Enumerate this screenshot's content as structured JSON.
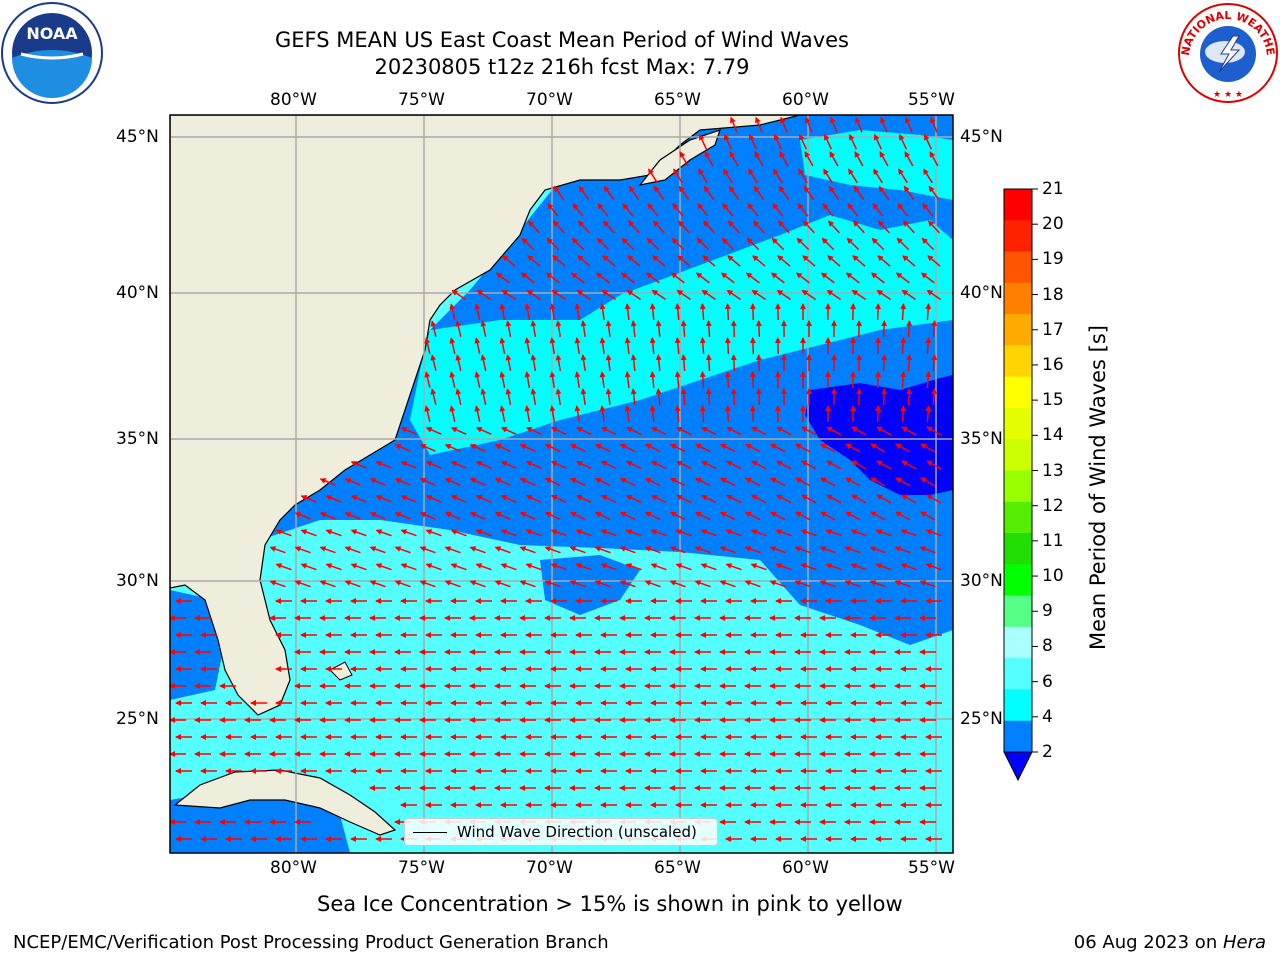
{
  "title": {
    "line1": "GEFS MEAN US East Coast Mean Period of Wind Waves",
    "line2": "20230805 t12z 216h fcst   Max: 7.79"
  },
  "logos": {
    "left": {
      "text": "NOAA",
      "icon": "noaa-logo-icon"
    },
    "right": {
      "text": "NATIONAL WEATHER SERVICE",
      "icon": "nws-logo-icon"
    }
  },
  "axes": {
    "lon_ticks": [
      "80°W",
      "75°W",
      "70°W",
      "65°W",
      "60°W",
      "55°W"
    ],
    "lat_ticks": [
      "45°N",
      "40°N",
      "35°N",
      "30°N",
      "25°N"
    ]
  },
  "colorbar": {
    "label": "Mean Period of Wind Waves [s]",
    "ticks": [
      "21",
      "20",
      "19",
      "18",
      "17",
      "16",
      "15",
      "14",
      "13",
      "12",
      "11",
      "10",
      "9",
      "8",
      "6",
      "4",
      "2"
    ],
    "colors": [
      "#ff0000",
      "#ff2200",
      "#ff5500",
      "#ff7f00",
      "#ffaa00",
      "#ffd400",
      "#ffff00",
      "#e5ff00",
      "#ccff00",
      "#99ff00",
      "#55ee00",
      "#22dd00",
      "#00ff00",
      "#55ff88",
      "#aaffff",
      "#55ffff",
      "#00ffff",
      "#0080ff"
    ],
    "under_color": "#0000ff"
  },
  "legend": {
    "text": "Wind Wave Direction (unscaled)"
  },
  "colors": {
    "land": "#efeedc",
    "ocean_low": "#0080ff",
    "ocean_mid": "#00ffff",
    "ocean_high": "#55ffff",
    "ocean_min": "#0000ff",
    "arrows": "#ff0000",
    "grid": "#aaaaaa"
  },
  "footer": {
    "sea_ice_note": "Sea Ice Concentration > 15% is shown in pink to yellow",
    "left": "NCEP/EMC/Verification Post Processing Product Generation Branch",
    "date": "06 Aug 2023 on ",
    "host": "Hera"
  }
}
